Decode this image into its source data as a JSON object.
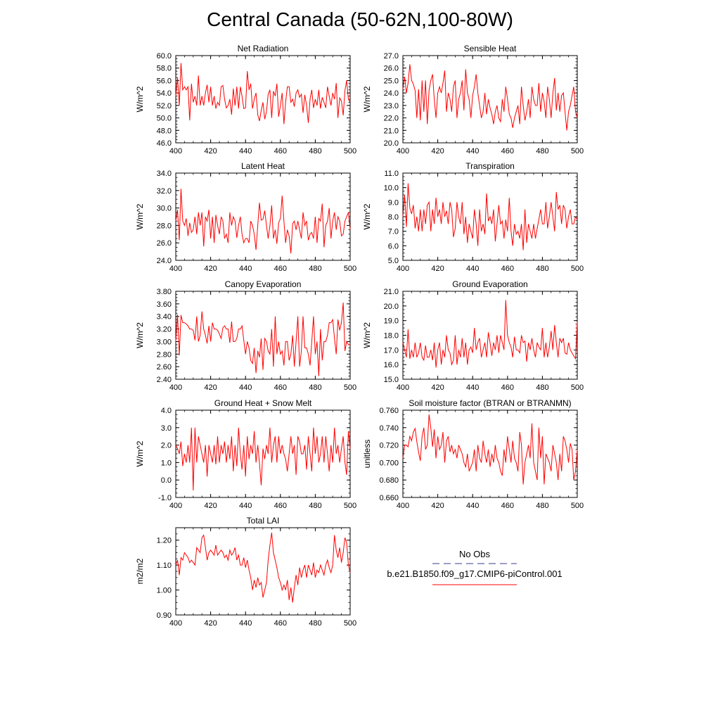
{
  "figure": {
    "title": "Central Canada (50-62N,100-80W)",
    "legend": {
      "obs_label": "No Obs",
      "obs_color": "#3b3b8f",
      "model_label": "b.e21.B1850.f09_g17.CMIP6-piControl.001",
      "model_color": "#ff0000"
    },
    "line_color": "#ff0000"
  },
  "chart_data": [
    {
      "type": "line",
      "title": "Net Radiation",
      "ylabel": "W/m^2",
      "xlim": [
        400,
        500
      ],
      "ylim": [
        46,
        60
      ],
      "x_ticks": [
        400,
        420,
        440,
        460,
        480,
        500
      ],
      "y_ticks": [
        46,
        48,
        50,
        52,
        54,
        56,
        58,
        60
      ],
      "y_tick_labels": [
        "46.0",
        "48.0",
        "50.0",
        "52.0",
        "54.0",
        "56.0",
        "58.0",
        "60.0"
      ],
      "x_start": 400,
      "values": [
        53.5,
        56.5,
        52.0,
        58.8,
        54.5,
        55.0,
        54.5,
        55.0,
        49.6,
        55.5,
        52.5,
        53.5,
        52.0,
        56.8,
        52.0,
        53.5,
        52.0,
        54.0,
        55.3,
        52.5,
        55.0,
        52.0,
        53.5,
        51.5,
        52.5,
        52.0,
        55.0,
        55.2,
        53.0,
        51.6,
        52.0,
        53.0,
        50.5,
        54.7,
        52.0,
        55.0,
        51.5,
        55.0,
        53.5,
        51.5,
        51.6,
        57.5,
        54.5,
        55.5,
        51.5,
        53.0,
        54.0,
        50.5,
        49.5,
        51.2,
        52.5,
        49.8,
        51.0,
        53.8,
        54.5,
        50.0,
        54.3,
        53.5,
        55.5,
        50.2,
        52.0,
        54.0,
        49.0,
        52.5,
        55.0,
        55.0,
        52.5,
        53.0,
        51.8,
        54.0,
        54.5,
        53.3,
        53.8,
        50.8,
        53.7,
        52.0,
        49.2,
        53.0,
        54.5,
        51.6,
        53.0,
        52.0,
        54.5,
        51.5,
        53.3,
        52.5,
        51.6,
        55.0,
        53.5,
        52.0,
        54.0,
        53.0,
        55.6,
        50.0,
        53.2,
        52.7,
        50.4,
        54.4,
        56.0,
        53.0,
        52.5
      ]
    },
    {
      "type": "line",
      "title": "Sensible Heat",
      "ylabel": "W/m^2",
      "xlim": [
        400,
        500
      ],
      "ylim": [
        20,
        27
      ],
      "x_ticks": [
        400,
        420,
        440,
        460,
        480,
        500
      ],
      "y_ticks": [
        20,
        21,
        22,
        23,
        24,
        25,
        26,
        27
      ],
      "y_tick_labels": [
        "20.0",
        "21.0",
        "22.0",
        "23.0",
        "24.0",
        "25.0",
        "26.0",
        "27.0"
      ],
      "x_start": 400,
      "values": [
        24.3,
        25.3,
        24.0,
        24.8,
        26.3,
        25.0,
        24.7,
        24.2,
        22.0,
        24.3,
        21.8,
        25.0,
        22.5,
        25.0,
        21.5,
        24.2,
        25.0,
        25.5,
        23.5,
        22.0,
        24.0,
        24.5,
        24.0,
        24.8,
        25.8,
        22.5,
        24.0,
        23.5,
        22.5,
        24.5,
        25.0,
        22.0,
        23.5,
        24.0,
        25.0,
        22.6,
        25.9,
        24.0,
        23.5,
        22.0,
        23.8,
        24.5,
        25.5,
        24.0,
        23.0,
        22.0,
        22.5,
        24.0,
        22.3,
        23.5,
        22.8,
        22.3,
        21.5,
        22.5,
        23.0,
        22.0,
        21.7,
        23.5,
        22.5,
        24.5,
        23.5,
        22.3,
        22.0,
        21.2,
        22.0,
        22.5,
        23.0,
        21.5,
        24.5,
        23.0,
        21.8,
        22.5,
        23.5,
        22.0,
        24.5,
        23.5,
        23.0,
        23.0,
        24.8,
        22.5,
        24.0,
        23.3,
        22.0,
        24.5,
        23.5,
        22.0,
        24.0,
        25.2,
        22.6,
        24.0,
        22.5,
        23.8,
        24.0,
        22.5,
        21.0,
        22.5,
        23.0,
        23.8,
        24.5,
        22.5,
        22.0
      ]
    },
    {
      "type": "line",
      "title": "Latent Heat",
      "ylabel": "W/m^2",
      "xlim": [
        400,
        500
      ],
      "ylim": [
        24,
        34
      ],
      "x_ticks": [
        400,
        420,
        440,
        460,
        480,
        500
      ],
      "y_ticks": [
        24,
        26,
        28,
        30,
        32,
        34
      ],
      "y_tick_labels": [
        "24.0",
        "26.0",
        "28.0",
        "30.0",
        "32.0",
        "34.0"
      ],
      "x_start": 400,
      "values": [
        28.5,
        29.8,
        26.3,
        32.2,
        28.5,
        28.0,
        28.8,
        26.8,
        28.3,
        27.2,
        27.5,
        29.0,
        27.0,
        29.5,
        28.0,
        29.5,
        25.6,
        29.0,
        28.5,
        29.8,
        26.5,
        29.0,
        26.0,
        29.2,
        28.0,
        27.0,
        29.0,
        28.5,
        26.5,
        27.0,
        26.0,
        29.5,
        28.0,
        29.0,
        28.5,
        26.6,
        28.0,
        29.0,
        27.0,
        26.0,
        26.5,
        26.5,
        26.0,
        28.5,
        28.0,
        27.0,
        25.2,
        28.0,
        30.6,
        28.6,
        28.7,
        29.7,
        28.0,
        26.5,
        28.0,
        30.3,
        26.5,
        27.5,
        25.9,
        28.3,
        28.8,
        31.4,
        28.5,
        26.0,
        27.5,
        26.8,
        24.8,
        28.2,
        28.5,
        27.5,
        28.5,
        27.5,
        26.5,
        29.5,
        28.0,
        28.5,
        26.3,
        27.0,
        27.2,
        26.5,
        29.0,
        26.0,
        28.8,
        28.5,
        30.5,
        25.5,
        28.0,
        28.5,
        30.0,
        26.5,
        28.5,
        29.5,
        27.5,
        29.0,
        28.5,
        26.8,
        27.0,
        28.5,
        29.0,
        29.5,
        27.5
      ]
    },
    {
      "type": "line",
      "title": "Transpiration",
      "ylabel": "W/m^2",
      "xlim": [
        400,
        500
      ],
      "ylim": [
        5,
        11
      ],
      "x_ticks": [
        400,
        420,
        440,
        460,
        480,
        500
      ],
      "y_ticks": [
        5,
        6,
        7,
        8,
        9,
        10,
        11
      ],
      "y_tick_labels": [
        "5.0",
        "6.0",
        "7.0",
        "8.0",
        "9.0",
        "10.0",
        "11.0"
      ],
      "x_start": 400,
      "values": [
        8.0,
        9.5,
        7.3,
        10.3,
        8.6,
        8.2,
        8.8,
        7.2,
        8.0,
        7.0,
        8.5,
        7.0,
        8.5,
        7.5,
        8.8,
        9.0,
        7.0,
        8.5,
        7.5,
        9.3,
        8.0,
        8.5,
        7.5,
        9.0,
        8.0,
        8.4,
        7.5,
        9.0,
        8.5,
        6.6,
        7.2,
        9.0,
        8.0,
        7.5,
        9.0,
        6.8,
        8.0,
        6.2,
        7.5,
        7.0,
        6.5,
        8.5,
        7.5,
        6.0,
        8.5,
        7.0,
        7.5,
        6.8,
        9.6,
        7.7,
        8.0,
        7.5,
        8.5,
        6.3,
        7.5,
        8.8,
        7.5,
        7.7,
        6.5,
        7.8,
        7.0,
        9.3,
        7.0,
        6.0,
        7.5,
        6.8,
        7.0,
        6.5,
        7.5,
        5.7,
        8.5,
        6.2,
        7.5,
        7.0,
        6.5,
        7.5,
        6.5,
        7.2,
        7.8,
        8.5,
        7.5,
        7.5,
        9.0,
        7.2,
        8.0,
        9.0,
        8.0,
        7.0,
        9.7,
        8.5,
        8.8,
        7.5,
        8.8,
        8.5,
        7.2,
        8.0,
        8.5,
        7.5,
        7.5,
        8.0,
        7.8
      ]
    },
    {
      "type": "line",
      "title": "Canopy Evaporation",
      "ylabel": "W/m^2",
      "xlim": [
        400,
        500
      ],
      "ylim": [
        2.4,
        3.8
      ],
      "x_ticks": [
        400,
        420,
        440,
        460,
        480,
        500
      ],
      "y_ticks": [
        2.4,
        2.6,
        2.8,
        3.0,
        3.2,
        3.4,
        3.6,
        3.8
      ],
      "y_tick_labels": [
        "2.40",
        "2.60",
        "2.80",
        "3.00",
        "3.20",
        "3.40",
        "3.60",
        "3.80"
      ],
      "x_start": 400,
      "values": [
        3.0,
        3.43,
        2.78,
        3.42,
        3.3,
        3.3,
        3.28,
        3.25,
        3.2,
        3.2,
        3.18,
        3.02,
        3.4,
        3.0,
        3.1,
        3.48,
        3.2,
        3.1,
        2.97,
        3.25,
        3.0,
        3.3,
        3.2,
        3.2,
        3.18,
        3.12,
        3.05,
        3.22,
        3.25,
        3.2,
        3.2,
        2.98,
        3.32,
        3.0,
        3.0,
        3.05,
        3.2,
        3.2,
        3.25,
        3.02,
        2.8,
        3.0,
        2.9,
        2.7,
        2.65,
        2.9,
        2.5,
        2.85,
        2.75,
        3.05,
        2.55,
        3.05,
        3.0,
        2.85,
        2.8,
        3.2,
        2.6,
        3.4,
        2.8,
        3.0,
        2.8,
        2.85,
        2.62,
        3.0,
        3.0,
        2.7,
        2.8,
        3.1,
        2.6,
        3.0,
        3.4,
        2.6,
        2.85,
        3.4,
        2.9,
        2.9,
        2.8,
        2.62,
        3.0,
        3.4,
        2.8,
        3.0,
        2.45,
        3.2,
        2.7,
        3.0,
        3.0,
        3.1,
        3.3,
        3.3,
        3.35,
        3.05,
        2.8,
        3.35,
        3.18,
        3.3,
        3.62,
        2.85,
        3.0,
        2.95,
        2.95
      ]
    },
    {
      "type": "line",
      "title": "Ground Evaporation",
      "ylabel": "W/m^2",
      "xlim": [
        400,
        500
      ],
      "ylim": [
        15,
        21
      ],
      "x_ticks": [
        400,
        420,
        440,
        460,
        480,
        500
      ],
      "y_ticks": [
        15,
        16,
        17,
        18,
        19,
        20,
        21
      ],
      "y_tick_labels": [
        "15.0",
        "16.0",
        "17.0",
        "18.0",
        "19.0",
        "20.0",
        "21.0"
      ],
      "x_start": 400,
      "values": [
        17.5,
        17.0,
        16.5,
        18.4,
        16.4,
        17.0,
        16.5,
        17.5,
        16.5,
        16.8,
        17.5,
        16.5,
        16.3,
        17.3,
        16.5,
        16.5,
        17.0,
        16.3,
        17.5,
        15.8,
        17.0,
        17.5,
        16.0,
        17.0,
        16.5,
        18.0,
        17.0,
        16.8,
        16.0,
        16.3,
        18.0,
        16.0,
        17.0,
        16.5,
        17.8,
        16.5,
        17.5,
        16.0,
        17.0,
        17.2,
        16.8,
        18.5,
        17.0,
        17.5,
        17.8,
        16.5,
        17.0,
        17.5,
        16.5,
        18.2,
        17.5,
        16.6,
        17.5,
        17.0,
        18.0,
        16.8,
        18.0,
        17.5,
        17.0,
        20.4,
        18.0,
        17.5,
        17.2,
        16.5,
        17.9,
        17.0,
        17.0,
        16.8,
        18.0,
        17.5,
        17.6,
        16.2,
        17.5,
        17.0,
        17.8,
        17.0,
        16.5,
        17.5,
        17.2,
        17.0,
        18.5,
        16.5,
        17.5,
        16.5,
        17.2,
        18.3,
        17.0,
        18.7,
        17.5,
        16.5,
        17.8,
        17.5,
        17.8,
        16.8,
        16.7,
        17.5,
        17.0,
        16.8,
        16.6,
        16.4,
        18.9
      ]
    },
    {
      "type": "line",
      "title": "Ground Heat + Snow Melt",
      "ylabel": "W/m^2",
      "xlim": [
        400,
        500
      ],
      "ylim": [
        -1,
        4
      ],
      "x_ticks": [
        400,
        420,
        440,
        460,
        480,
        500
      ],
      "y_ticks": [
        -1,
        0,
        1,
        2,
        3,
        4
      ],
      "y_tick_labels": [
        "-1.0",
        "0.0",
        "1.0",
        "2.0",
        "3.0",
        "4.0"
      ],
      "x_start": 400,
      "values": [
        2.0,
        1.8,
        1.5,
        2.2,
        0.8,
        1.5,
        1.0,
        2.0,
        1.0,
        3.0,
        -0.6,
        3.0,
        1.0,
        2.5,
        2.0,
        1.5,
        1.0,
        2.0,
        0.2,
        2.0,
        1.5,
        1.0,
        2.0,
        0.9,
        2.5,
        1.0,
        2.0,
        1.5,
        2.2,
        1.0,
        2.0,
        1.2,
        2.5,
        0.5,
        2.0,
        0.8,
        3.0,
        1.5,
        0.6,
        2.0,
        0.2,
        2.5,
        1.2,
        2.0,
        1.5,
        2.8,
        1.0,
        2.0,
        1.0,
        -0.3,
        1.8,
        1.2,
        2.0,
        1.5,
        3.0,
        1.0,
        2.0,
        2.5,
        1.0,
        2.5,
        1.5,
        2.0,
        1.5,
        1.2,
        0.5,
        1.5,
        2.5,
        1.5,
        2.0,
        0.3,
        2.5,
        2.2,
        1.5,
        1.5,
        2.0,
        0.6,
        2.5,
        1.5,
        0.5,
        3.0,
        1.5,
        2.5,
        1.0,
        1.5,
        2.5,
        1.0,
        2.5,
        1.5,
        0.5,
        2.0,
        1.0,
        3.0,
        1.5,
        2.0,
        1.0,
        1.8,
        2.5,
        1.0,
        0.3,
        2.8,
        1.8
      ]
    },
    {
      "type": "line",
      "title": "Soil moisture factor (BTRAN or BTRANMN)",
      "ylabel": "unitless",
      "xlim": [
        400,
        500
      ],
      "ylim": [
        0.66,
        0.76
      ],
      "x_ticks": [
        400,
        420,
        440,
        460,
        480,
        500
      ],
      "y_ticks": [
        0.66,
        0.68,
        0.7,
        0.72,
        0.74,
        0.76
      ],
      "y_tick_labels": [
        "0.660",
        "0.680",
        "0.700",
        "0.720",
        "0.740",
        "0.760"
      ],
      "x_start": 400,
      "values": [
        0.705,
        0.72,
        0.72,
        0.718,
        0.73,
        0.725,
        0.735,
        0.739,
        0.724,
        0.712,
        0.702,
        0.73,
        0.74,
        0.715,
        0.72,
        0.755,
        0.74,
        0.718,
        0.738,
        0.705,
        0.73,
        0.715,
        0.72,
        0.735,
        0.7,
        0.725,
        0.73,
        0.712,
        0.72,
        0.71,
        0.715,
        0.705,
        0.72,
        0.715,
        0.71,
        0.7,
        0.695,
        0.71,
        0.69,
        0.695,
        0.7,
        0.715,
        0.69,
        0.72,
        0.705,
        0.7,
        0.725,
        0.71,
        0.7,
        0.715,
        0.695,
        0.71,
        0.7,
        0.72,
        0.705,
        0.7,
        0.69,
        0.685,
        0.715,
        0.7,
        0.73,
        0.715,
        0.7,
        0.725,
        0.705,
        0.7,
        0.69,
        0.735,
        0.72,
        0.675,
        0.7,
        0.71,
        0.72,
        0.705,
        0.745,
        0.7,
        0.69,
        0.68,
        0.74,
        0.705,
        0.73,
        0.675,
        0.71,
        0.705,
        0.7,
        0.69,
        0.72,
        0.71,
        0.7,
        0.68,
        0.71,
        0.69,
        0.73,
        0.725,
        0.715,
        0.7,
        0.722,
        0.715,
        0.68,
        0.69,
        0.715
      ]
    },
    {
      "type": "line",
      "title": "Total LAI",
      "ylabel": "m2/m2",
      "xlim": [
        400,
        500
      ],
      "ylim": [
        0.9,
        1.25
      ],
      "x_ticks": [
        400,
        420,
        440,
        460,
        480,
        500
      ],
      "y_ticks": [
        0.9,
        1.0,
        1.1,
        1.2
      ],
      "y_tick_labels": [
        "0.90",
        "1.00",
        "1.10",
        "1.20"
      ],
      "x_start": 400,
      "values": [
        1.1,
        1.12,
        1.06,
        1.13,
        1.12,
        1.15,
        1.14,
        1.13,
        1.11,
        1.12,
        1.11,
        1.1,
        1.17,
        1.16,
        1.15,
        1.21,
        1.22,
        1.17,
        1.12,
        1.15,
        1.16,
        1.15,
        1.14,
        1.18,
        1.14,
        1.15,
        1.16,
        1.15,
        1.13,
        1.14,
        1.12,
        1.16,
        1.14,
        1.15,
        1.17,
        1.12,
        1.14,
        1.1,
        1.1,
        1.13,
        1.09,
        1.12,
        1.08,
        1.05,
        1.0,
        1.04,
        1.01,
        1.05,
        1.02,
        1.03,
        0.97,
        1.0,
        1.03,
        1.12,
        1.18,
        1.23,
        1.15,
        1.12,
        1.09,
        1.05,
        1.03,
        1.0,
        1.02,
        1.0,
        1.04,
        0.96,
        1.01,
        0.95,
        1.01,
        1.06,
        1.02,
        1.09,
        1.05,
        1.08,
        1.1,
        1.05,
        1.1,
        1.08,
        1.06,
        1.11,
        1.05,
        1.08,
        1.07,
        1.1,
        1.08,
        1.06,
        1.1,
        1.12,
        1.09,
        1.07,
        1.1,
        1.22,
        1.16,
        1.13,
        1.17,
        1.11,
        1.15,
        1.21,
        1.19,
        1.1,
        1.07
      ]
    }
  ]
}
